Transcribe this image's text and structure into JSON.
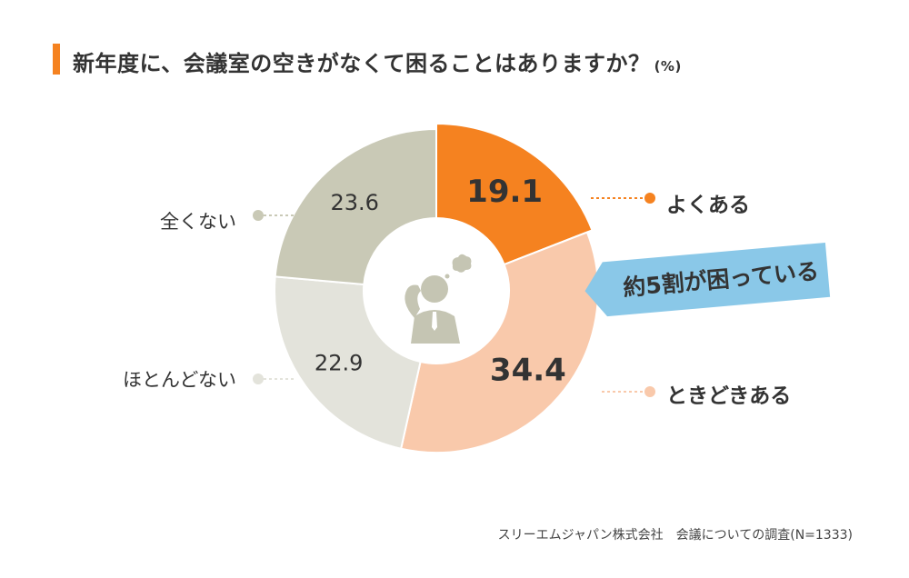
{
  "title": "新年度に、会議室の空きがなくて困ることはありますか？",
  "title_unit": "(%)",
  "callout": "約5割が困っている",
  "source": "スリーエムジャパン株式会社　会議についての調査(N=1333)",
  "colors": {
    "accent": "#f58220",
    "yoku": "#f58220",
    "tokidoki": "#f9c9ab",
    "hotondo": "#e3e3db",
    "mattaku": "#c9c9b6",
    "callout": "#8ac8e8",
    "icon": "#c5c5b3"
  },
  "icon": "thinking-person-icon",
  "chart_data": {
    "type": "pie",
    "style": "donut",
    "categories": [
      "よくある",
      "ときどきある",
      "ほとんどない",
      "全くない"
    ],
    "values": [
      19.1,
      34.4,
      22.9,
      23.6
    ],
    "value_labels": [
      "19.1",
      "34.4",
      "22.9",
      "23.6"
    ],
    "highlight": "よくある",
    "title": "新年度に、会議室の空きがなくて困ることはありますか？",
    "unit": "%"
  },
  "labels": {
    "yoku": "よくある",
    "tokidoki": "ときどきある",
    "hotondo": "ほとんどない",
    "mattaku": "全くない"
  }
}
